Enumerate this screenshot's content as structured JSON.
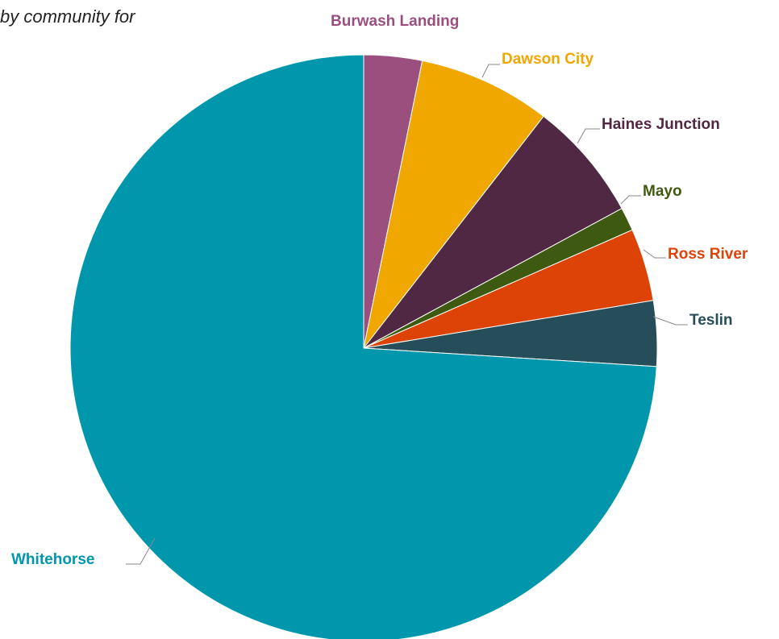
{
  "chart_data": {
    "type": "pie",
    "title_fragment": "by community for",
    "slices": [
      {
        "label": "Burwash Landing",
        "value": 3.2,
        "color": "#9b4f7f"
      },
      {
        "label": "Dawson City",
        "value": 7.3,
        "color": "#f0a800"
      },
      {
        "label": "Haines Junction",
        "value": 6.6,
        "color": "#512844"
      },
      {
        "label": "Mayo",
        "value": 1.3,
        "color": "#3e5a10"
      },
      {
        "label": "Ross River",
        "value": 4.0,
        "color": "#dd4306"
      },
      {
        "label": "Teslin",
        "value": 3.6,
        "color": "#264d5a"
      },
      {
        "label": "Whitehorse",
        "value": 74.0,
        "color": "#0097ad"
      }
    ],
    "start_angle": "12 o'clock",
    "direction": "clockwise",
    "labels": "outside with leader lines"
  }
}
